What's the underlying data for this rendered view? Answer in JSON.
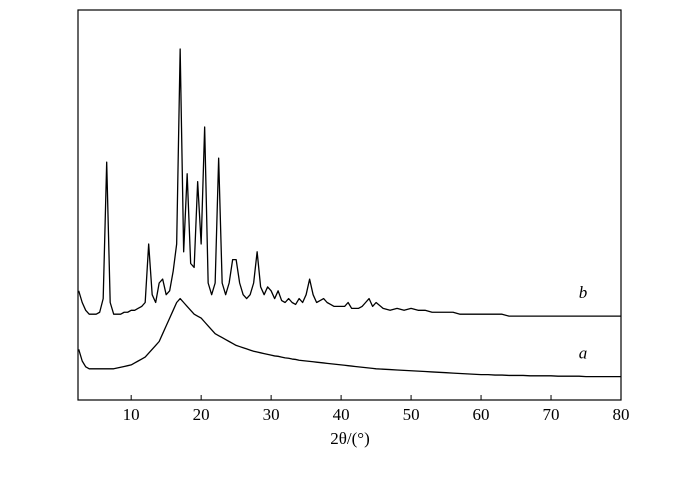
{
  "chart_data": {
    "type": "line",
    "x_label": "2θ/(°)",
    "x": [
      2.5,
      3,
      3.5,
      4,
      4.5,
      5,
      5.5,
      6,
      6.5,
      7,
      7.5,
      8,
      8.5,
      9,
      9.5,
      10,
      10.5,
      11,
      11.5,
      12,
      12.5,
      13,
      13.5,
      14,
      14.5,
      15,
      15.5,
      16,
      16.5,
      17,
      17.5,
      18,
      18.5,
      19,
      19.5,
      20,
      20.5,
      21,
      21.5,
      22,
      22.5,
      23,
      23.5,
      24,
      24.5,
      25,
      25.5,
      26,
      26.5,
      27,
      27.5,
      28,
      28.5,
      29,
      29.5,
      30,
      30.5,
      31,
      31.5,
      32,
      32.5,
      33,
      33.5,
      34,
      34.5,
      35,
      35.5,
      36,
      36.5,
      37,
      37.5,
      38,
      38.5,
      39,
      39.5,
      40,
      40.5,
      41,
      41.5,
      42,
      42.5,
      43,
      43.5,
      44,
      44.5,
      45,
      46,
      47,
      48,
      49,
      50,
      51,
      52,
      53,
      54,
      55,
      56,
      57,
      58,
      59,
      60,
      61,
      62,
      63,
      64,
      65,
      66,
      67,
      68,
      69,
      70,
      71,
      72,
      73,
      74,
      75,
      76,
      77,
      78,
      79,
      80
    ],
    "series": [
      {
        "name": "a",
        "color": "#000000",
        "values": [
          13,
          10,
          8.5,
          8,
          8,
          8,
          8,
          8,
          8,
          8,
          8,
          8.2,
          8.4,
          8.6,
          8.8,
          9,
          9.5,
          10,
          10.5,
          11,
          12,
          13,
          14,
          15,
          17,
          19,
          21,
          23,
          25,
          26,
          25,
          24,
          23,
          22,
          21.5,
          21,
          20,
          19,
          18,
          17,
          16.5,
          16,
          15.5,
          15,
          14.5,
          14,
          13.7,
          13.4,
          13.1,
          12.8,
          12.5,
          12.3,
          12.1,
          11.9,
          11.7,
          11.5,
          11.3,
          11.2,
          11,
          10.8,
          10.7,
          10.5,
          10.4,
          10.2,
          10.1,
          10,
          9.9,
          9.8,
          9.7,
          9.6,
          9.5,
          9.4,
          9.3,
          9.2,
          9.1,
          9,
          8.9,
          8.8,
          8.7,
          8.6,
          8.5,
          8.4,
          8.3,
          8.2,
          8.1,
          8,
          7.9,
          7.8,
          7.7,
          7.6,
          7.5,
          7.4,
          7.3,
          7.2,
          7.1,
          7,
          6.9,
          6.8,
          6.7,
          6.6,
          6.5,
          6.5,
          6.4,
          6.4,
          6.3,
          6.3,
          6.3,
          6.2,
          6.2,
          6.2,
          6.2,
          6.1,
          6.1,
          6.1,
          6.1,
          6,
          6,
          6,
          6,
          6,
          6
        ]
      },
      {
        "name": "b",
        "color": "#000000",
        "values": [
          28,
          25,
          23,
          22,
          22,
          22,
          22.5,
          26,
          61,
          25,
          22,
          22,
          22,
          22.5,
          22.5,
          23,
          23,
          23.5,
          24,
          25,
          40,
          27,
          25,
          30,
          31,
          27,
          28,
          33,
          40,
          90,
          38,
          58,
          35,
          34,
          56,
          40,
          70,
          30,
          27,
          30,
          62,
          30,
          27,
          30,
          36,
          36,
          30,
          27,
          26,
          27,
          30,
          38,
          29,
          27,
          29,
          28,
          26,
          28,
          25.5,
          25,
          26,
          25,
          24.5,
          26,
          25,
          27,
          31,
          27,
          25,
          25.5,
          26,
          25,
          24.5,
          24,
          24,
          24,
          24,
          25,
          23.5,
          23.5,
          23.5,
          24,
          25,
          26,
          24,
          25,
          23.5,
          23,
          23.5,
          23,
          23.5,
          23,
          23,
          22.5,
          22.5,
          22.5,
          22.5,
          22,
          22,
          22,
          22,
          22,
          22,
          22,
          21.5,
          21.5,
          21.5,
          21.5,
          21.5,
          21.5,
          21.5,
          21.5,
          21.5,
          21.5,
          21.5,
          21.5,
          21.5,
          21.5,
          21.5,
          21.5,
          21.5
        ]
      }
    ],
    "xlim": [
      2.4,
      80
    ],
    "xticks": [
      10,
      20,
      30,
      40,
      50,
      60,
      70,
      80
    ],
    "ylim": [
      0,
      100
    ]
  }
}
